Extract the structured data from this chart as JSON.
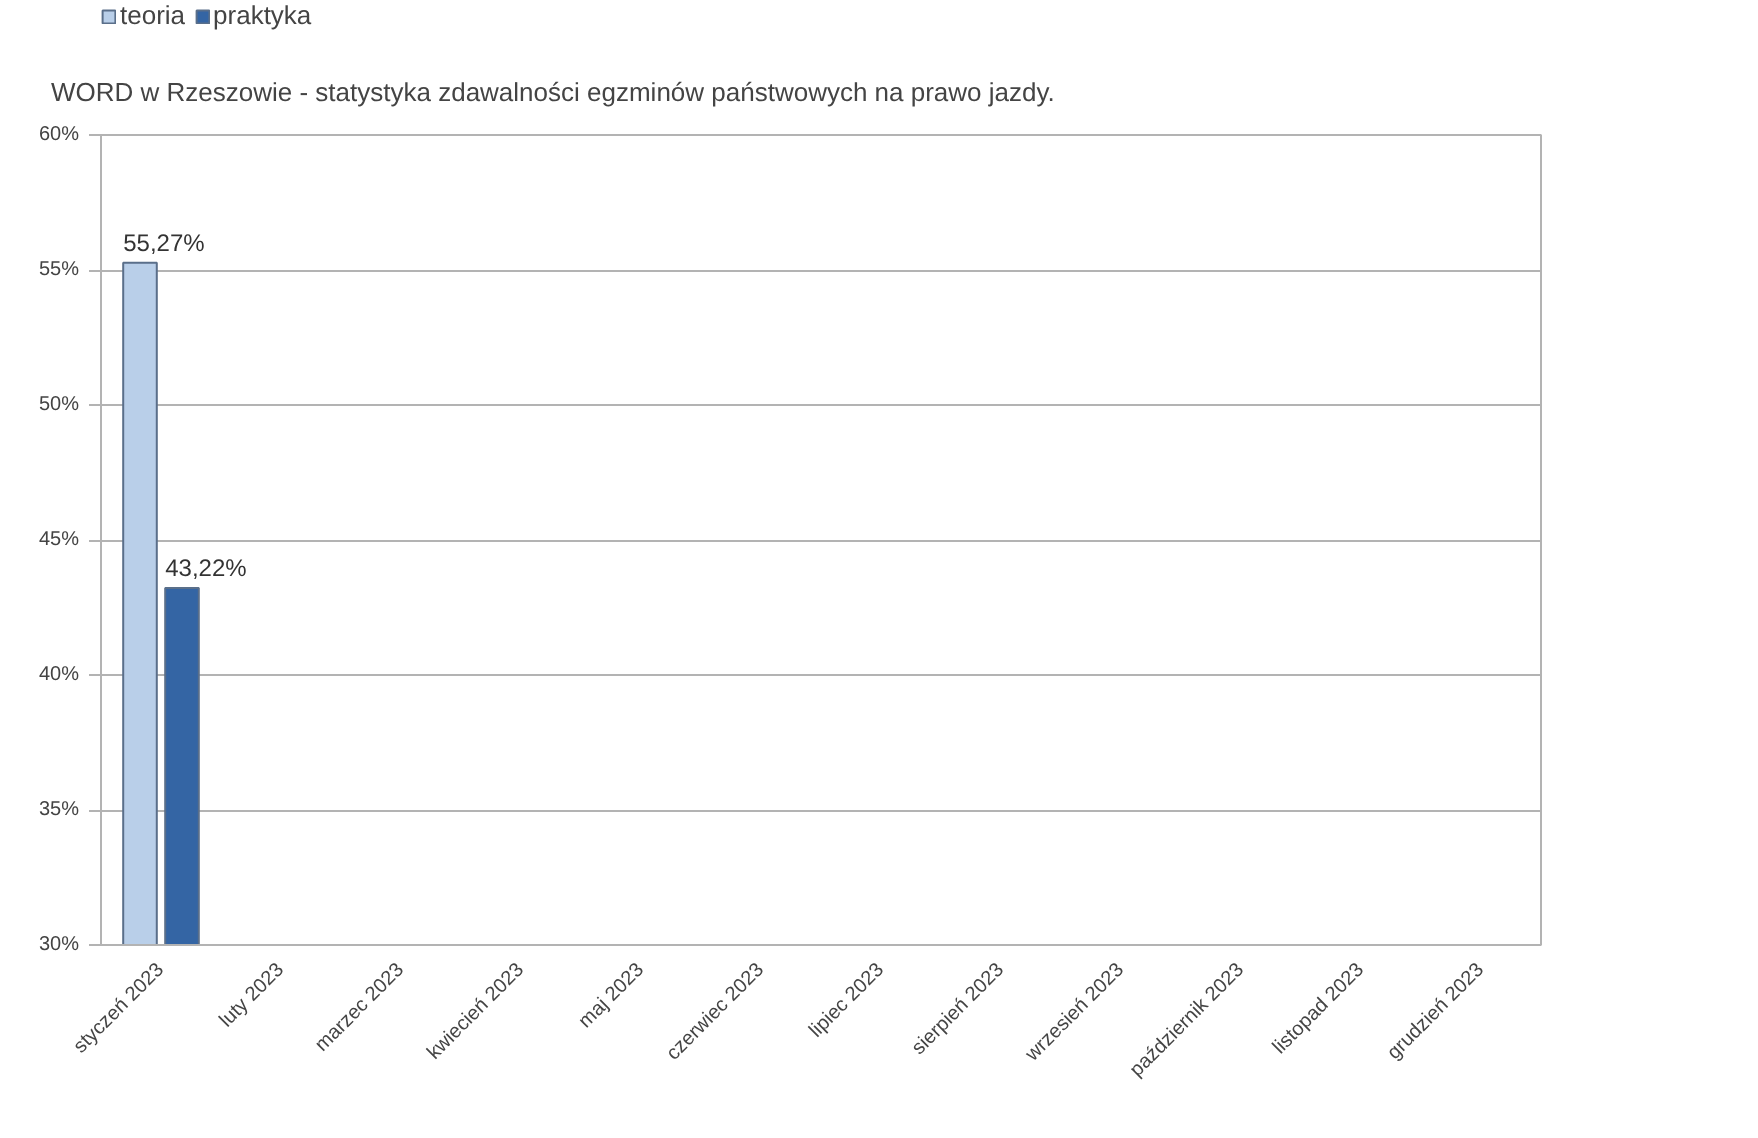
{
  "chart_data": {
    "type": "bar",
    "title": "WORD w Rzeszowie - statystyka zdawalności egzminów państwowych na prawo jazdy.",
    "categories": [
      "styczeń 2023",
      "luty 2023",
      "marzec 2023",
      "kwiecień 2023",
      "maj 2023",
      "czerwiec 2023",
      "lipiec 2023",
      "sierpień 2023",
      "wrzesień 2023",
      "październik 2023",
      "listopad 2023",
      "grudzień 2023"
    ],
    "series": [
      {
        "name": "teoria",
        "color": "#b9cfe9",
        "values": [
          55.27,
          null,
          null,
          null,
          null,
          null,
          null,
          null,
          null,
          null,
          null,
          null
        ],
        "value_labels": [
          "55,27%",
          null,
          null,
          null,
          null,
          null,
          null,
          null,
          null,
          null,
          null,
          null
        ]
      },
      {
        "name": "praktyka",
        "color": "#3465a4",
        "values": [
          43.22,
          null,
          null,
          null,
          null,
          null,
          null,
          null,
          null,
          null,
          null,
          null
        ],
        "value_labels": [
          "43,22%",
          null,
          null,
          null,
          null,
          null,
          null,
          null,
          null,
          null,
          null,
          null
        ]
      }
    ],
    "ylim": [
      30,
      60
    ],
    "yticks": [
      {
        "value": 30,
        "label": "30%"
      },
      {
        "value": 35,
        "label": "35%"
      },
      {
        "value": 40,
        "label": "40%"
      },
      {
        "value": 45,
        "label": "45%"
      },
      {
        "value": 50,
        "label": "50%"
      },
      {
        "value": 55,
        "label": "55%"
      },
      {
        "value": 60,
        "label": "60%"
      }
    ],
    "grid": "y",
    "legend": "top left"
  }
}
